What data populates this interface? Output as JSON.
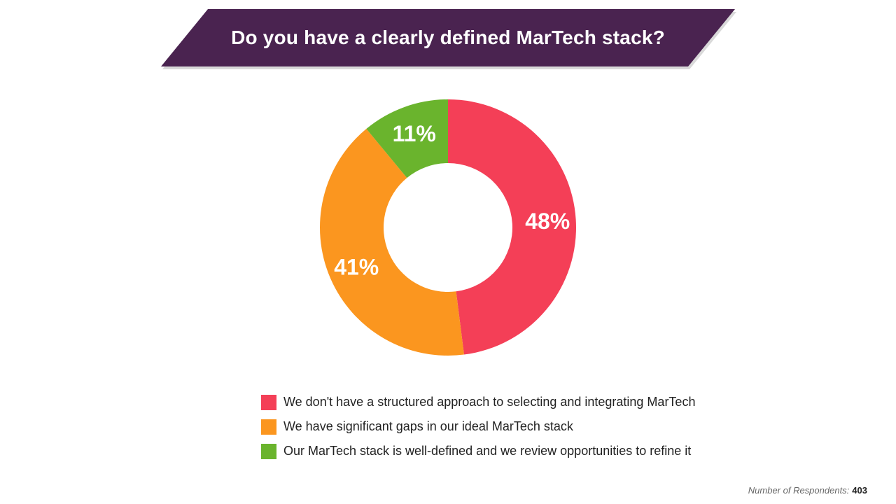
{
  "header": {
    "title": "Do you have a clearly defined MarTech stack?",
    "banner_color": "#4a2350"
  },
  "chart_data": {
    "type": "pie",
    "donut": true,
    "title": "Do you have a clearly defined MarTech stack?",
    "start_angle_deg": 0,
    "direction": "clockwise",
    "slices": [
      {
        "label": "We don't have a structured approach to selecting and integrating MarTech",
        "value": 48,
        "display": "48%",
        "color": "#f43f57"
      },
      {
        "label": "We have significant gaps in our ideal MarTech stack",
        "value": 41,
        "display": "41%",
        "color": "#fb961f"
      },
      {
        "label": "Our MarTech stack is well-defined and we review opportunities to refine it",
        "value": 11,
        "display": "11%",
        "color": "#6ab42d"
      }
    ],
    "legend_position": "bottom"
  },
  "footnote": {
    "label": "Number of Respondents:",
    "value": "403"
  }
}
